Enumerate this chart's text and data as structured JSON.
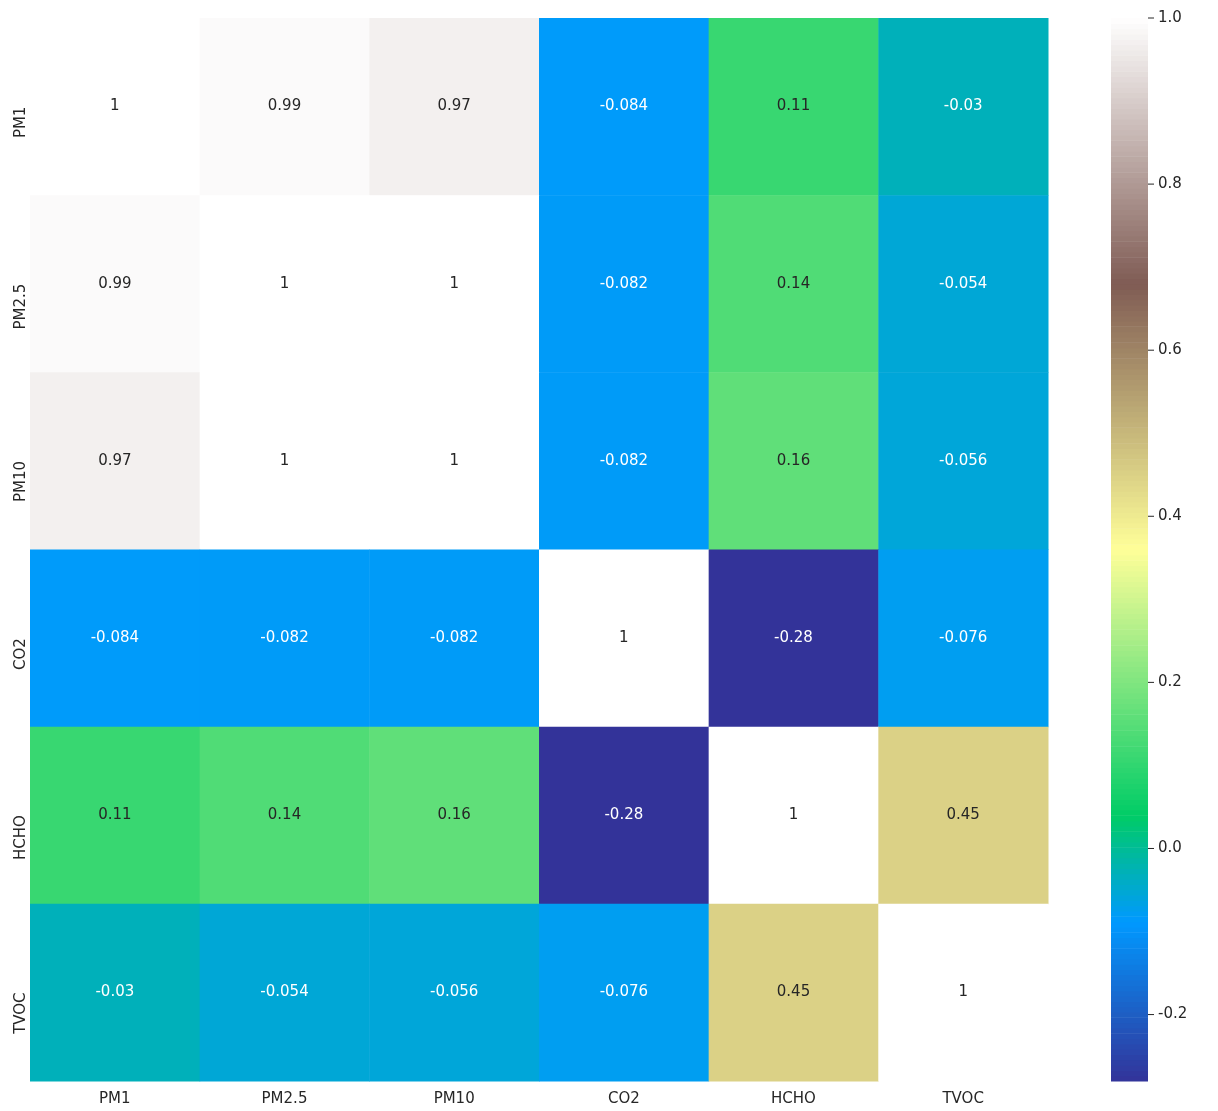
{
  "chart_data": {
    "type": "heatmap",
    "categories": [
      "PM1",
      "PM2.5",
      "PM10",
      "CO2",
      "HCHO",
      "TVOC"
    ],
    "y_categories": [
      "PM1",
      "PM2.5",
      "PM10",
      "CO2",
      "HCHO",
      "TVOC"
    ],
    "cells": [
      [
        1,
        0.99,
        0.97,
        -0.084,
        0.11,
        -0.03
      ],
      [
        0.99,
        1,
        1,
        -0.082,
        0.14,
        -0.054
      ],
      [
        0.97,
        1,
        1,
        -0.082,
        0.16,
        -0.056
      ],
      [
        -0.084,
        -0.082,
        -0.082,
        1,
        -0.28,
        -0.076
      ],
      [
        0.11,
        0.14,
        0.16,
        -0.28,
        1,
        0.45
      ],
      [
        -0.03,
        -0.054,
        -0.056,
        -0.076,
        0.45,
        1
      ]
    ],
    "data_labels": true,
    "clim": [
      -0.28,
      1.0
    ],
    "cticks": [
      {
        "value": -0.2,
        "label": "-0.2"
      },
      {
        "value": 0,
        "label": "0.0"
      },
      {
        "value": 0.2,
        "label": "0.2"
      },
      {
        "value": 0.4,
        "label": "0.4"
      },
      {
        "value": 0.6,
        "label": "0.6"
      },
      {
        "value": 0.8,
        "label": "0.8"
      },
      {
        "value": 1,
        "label": "1.0"
      }
    ],
    "grid": false
  }
}
